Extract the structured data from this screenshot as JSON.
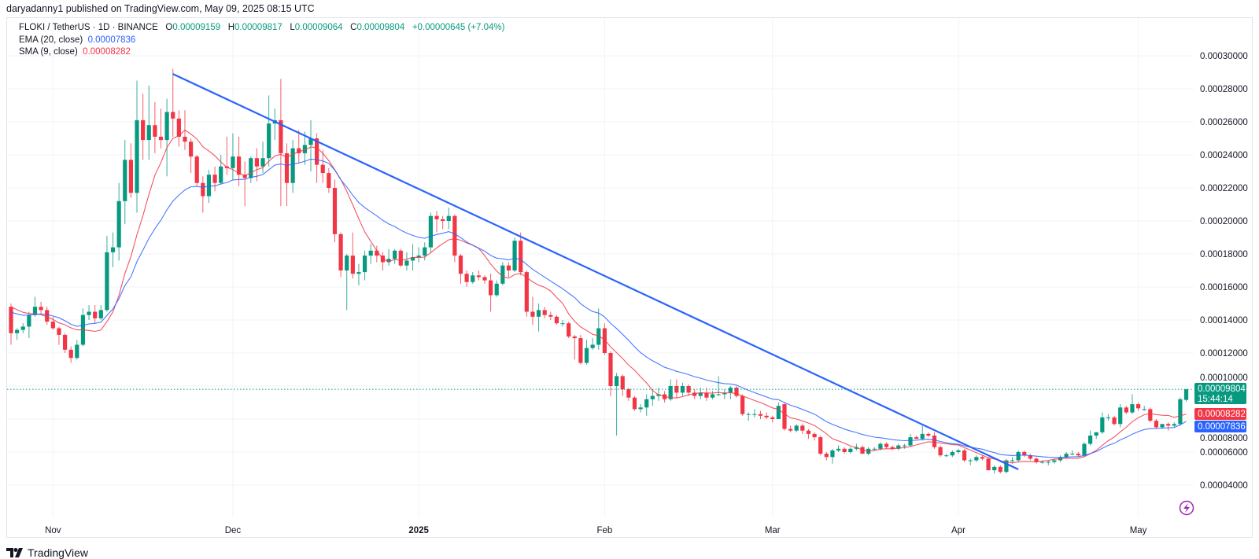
{
  "header": {
    "published": "daryadanny1 published on TradingView.com, May 09, 2025 08:15 UTC"
  },
  "legend": {
    "symbol": "FLOKI / TetherUS · 1D · BINANCE",
    "o_label": "O",
    "o_value": "0.00009159",
    "h_label": "H",
    "h_value": "0.00009817",
    "l_label": "L",
    "l_value": "0.00009064",
    "c_label": "C",
    "c_value": "0.00009804",
    "change": "+0.00000645 (+7.04%)",
    "ema_label": "EMA (20, close)",
    "ema_value": "0.00007836",
    "sma_label": "SMA (9, close)",
    "sma_value": "0.00008282"
  },
  "tags": {
    "last_price": "0.00009804",
    "countdown": "15:44:14",
    "sma": "0.00008282",
    "ema": "0.00007836"
  },
  "colors": {
    "up": "#089981",
    "down": "#F23645",
    "ema": "#2962FF",
    "sma": "#F23645",
    "trendline": "#2962FF",
    "grid": "#f0f3fa",
    "alert": "#9C27B0"
  },
  "brand": "TradingView",
  "chart_data": {
    "type": "candlestick",
    "title": "FLOKI / TetherUS · 1D · BINANCE",
    "price_unit": "1e-6 USDT",
    "ylim": [
      30,
      300
    ],
    "y_ticks": [
      300,
      280,
      260,
      240,
      220,
      200,
      180,
      160,
      140,
      120,
      100,
      80,
      60,
      40
    ],
    "y_tick_labels": [
      "0.00030000",
      "0.00028000",
      "0.00026000",
      "0.00024000",
      "0.00022000",
      "0.00020000",
      "0.00018000",
      "0.00016000",
      "0.00014000",
      "0.00012000",
      "0.00010000",
      "0.00008000",
      "0.00006000",
      "0.00004000"
    ],
    "x_first_day": "Oct 25, 2024",
    "x_ticks": [
      {
        "day": 7,
        "label": "Nov"
      },
      {
        "day": 37,
        "label": "Dec"
      },
      {
        "day": 68,
        "label": "2025",
        "bold": true
      },
      {
        "day": 99,
        "label": "Feb"
      },
      {
        "day": 127,
        "label": "Mar"
      },
      {
        "day": 158,
        "label": "Apr"
      },
      {
        "day": 188,
        "label": "May"
      }
    ],
    "indicators": {
      "ema_period": 20,
      "ema_initial": 146,
      "sma_period": 9,
      "sma_initial": 150
    },
    "trendline": [
      {
        "day": 27,
        "price": 289
      },
      {
        "day": 168,
        "price": 49.5
      }
    ],
    "grid": true,
    "ohlc": [
      [
        148,
        150,
        125,
        132
      ],
      [
        132,
        135,
        128,
        134
      ],
      [
        134,
        138,
        132,
        136
      ],
      [
        136,
        145,
        129,
        143
      ],
      [
        143,
        154,
        142,
        148
      ],
      [
        148,
        151,
        144,
        146
      ],
      [
        146,
        148,
        137,
        139
      ],
      [
        139,
        142,
        134,
        135
      ],
      [
        135,
        136,
        125,
        131
      ],
      [
        131,
        132,
        120,
        122
      ],
      [
        122,
        124,
        114,
        117
      ],
      [
        117,
        128,
        116,
        125
      ],
      [
        125,
        147,
        124,
        143
      ],
      [
        143,
        149,
        140,
        145
      ],
      [
        145,
        149,
        138,
        141
      ],
      [
        141,
        149,
        140,
        146
      ],
      [
        146,
        191,
        145,
        181
      ],
      [
        181,
        193,
        172,
        184
      ],
      [
        184,
        223,
        176,
        212
      ],
      [
        212,
        249,
        198,
        237
      ],
      [
        237,
        247,
        214,
        217
      ],
      [
        217,
        285,
        205,
        261
      ],
      [
        261,
        277,
        237,
        249
      ],
      [
        249,
        282,
        237,
        258
      ],
      [
        258,
        272,
        241,
        251
      ],
      [
        251,
        268,
        244,
        249
      ],
      [
        249,
        274,
        227,
        266
      ],
      [
        266,
        292,
        251,
        262
      ],
      [
        262,
        267,
        245,
        251
      ],
      [
        251,
        267,
        243,
        248
      ],
      [
        248,
        250,
        229,
        239
      ],
      [
        239,
        240,
        221,
        223
      ],
      [
        223,
        227,
        205,
        215
      ],
      [
        215,
        231,
        211,
        228
      ],
      [
        228,
        233,
        218,
        223
      ],
      [
        223,
        240,
        222,
        233
      ],
      [
        233,
        251,
        228,
        232
      ],
      [
        232,
        253,
        225,
        239
      ],
      [
        239,
        251,
        221,
        228
      ],
      [
        228,
        236,
        209,
        226
      ],
      [
        226,
        239,
        223,
        238
      ],
      [
        238,
        244,
        224,
        233
      ],
      [
        233,
        248,
        229,
        238
      ],
      [
        238,
        276,
        233,
        259
      ],
      [
        259,
        268,
        249,
        261
      ],
      [
        261,
        286,
        209,
        241
      ],
      [
        241,
        247,
        209,
        223
      ],
      [
        223,
        249,
        217,
        244
      ],
      [
        244,
        255,
        235,
        241
      ],
      [
        241,
        254,
        234,
        246
      ],
      [
        246,
        261,
        230,
        250
      ],
      [
        250,
        253,
        223,
        234
      ],
      [
        234,
        243,
        223,
        229
      ],
      [
        229,
        232,
        217,
        220
      ],
      [
        220,
        225,
        187,
        192
      ],
      [
        192,
        193,
        166,
        170
      ],
      [
        170,
        180,
        146,
        179
      ],
      [
        179,
        193,
        165,
        168
      ],
      [
        168,
        174,
        161,
        169
      ],
      [
        169,
        182,
        164,
        179
      ],
      [
        179,
        186,
        174,
        182
      ],
      [
        182,
        185,
        175,
        179
      ],
      [
        179,
        181,
        170,
        175
      ],
      [
        175,
        183,
        173,
        177
      ],
      [
        177,
        183,
        174,
        182
      ],
      [
        182,
        183,
        172,
        173
      ],
      [
        173,
        181,
        170,
        176
      ],
      [
        176,
        186,
        170,
        178
      ],
      [
        178,
        184,
        175,
        179
      ],
      [
        179,
        187,
        176,
        184
      ],
      [
        184,
        205,
        181,
        203
      ],
      [
        203,
        206,
        193,
        201
      ],
      [
        201,
        203,
        195,
        200
      ],
      [
        200,
        208,
        195,
        203
      ],
      [
        203,
        204,
        175,
        179
      ],
      [
        179,
        180,
        162,
        168
      ],
      [
        168,
        170,
        160,
        163
      ],
      [
        163,
        169,
        162,
        167
      ],
      [
        167,
        170,
        164,
        166
      ],
      [
        166,
        167,
        162,
        164
      ],
      [
        164,
        168,
        145,
        155
      ],
      [
        155,
        164,
        154,
        162
      ],
      [
        162,
        175,
        161,
        173
      ],
      [
        173,
        175,
        166,
        170
      ],
      [
        170,
        190,
        169,
        188
      ],
      [
        188,
        193,
        167,
        169
      ],
      [
        169,
        170,
        142,
        145
      ],
      [
        145,
        154,
        137,
        142
      ],
      [
        142,
        150,
        133,
        146
      ],
      [
        146,
        148,
        141,
        143
      ],
      [
        143,
        145,
        140,
        142
      ],
      [
        142,
        143,
        137,
        138
      ],
      [
        138,
        140,
        136,
        138
      ],
      [
        138,
        139,
        129,
        130
      ],
      [
        130,
        131,
        116,
        129
      ],
      [
        129,
        131,
        113,
        114
      ],
      [
        114,
        128,
        113,
        123
      ],
      [
        123,
        129,
        122,
        125
      ],
      [
        125,
        147,
        122,
        135
      ],
      [
        135,
        138,
        119,
        120
      ],
      [
        120,
        121,
        94,
        100
      ],
      [
        100,
        108,
        70,
        106
      ],
      [
        106,
        107,
        94,
        98
      ],
      [
        98,
        99,
        91,
        93
      ],
      [
        93,
        94,
        85,
        86
      ],
      [
        86,
        89,
        84,
        87
      ],
      [
        87,
        95,
        82,
        92
      ],
      [
        92,
        98,
        88,
        94
      ],
      [
        94,
        99,
        91,
        95
      ],
      [
        95,
        97,
        90,
        92
      ],
      [
        92,
        104,
        91,
        100
      ],
      [
        100,
        104,
        93,
        96
      ],
      [
        96,
        102,
        94,
        100
      ],
      [
        100,
        101,
        94,
        96
      ],
      [
        96,
        98,
        92,
        94
      ],
      [
        94,
        99,
        92,
        96
      ],
      [
        96,
        99,
        91,
        93
      ],
      [
        93,
        97,
        92,
        95
      ],
      [
        95,
        106,
        94,
        95
      ],
      [
        95,
        98,
        92,
        96
      ],
      [
        96,
        100,
        92,
        99
      ],
      [
        99,
        100,
        93,
        94
      ],
      [
        94,
        95,
        82,
        83
      ],
      [
        83,
        84,
        79,
        83
      ],
      [
        83,
        86,
        81,
        83
      ],
      [
        83,
        85,
        80,
        82
      ],
      [
        82,
        84,
        80,
        81
      ],
      [
        81,
        82,
        78,
        80
      ],
      [
        80,
        90,
        80,
        88
      ],
      [
        89,
        90,
        73,
        74
      ],
      [
        74,
        76,
        72,
        73
      ],
      [
        73,
        77,
        72,
        76
      ],
      [
        76,
        77,
        71,
        73
      ],
      [
        73,
        74,
        68,
        71
      ],
      [
        71,
        72,
        67,
        69
      ],
      [
        69,
        70,
        58,
        59
      ],
      [
        59,
        60,
        55,
        57
      ],
      [
        57,
        62,
        53,
        61
      ],
      [
        61,
        64,
        60,
        62
      ],
      [
        62,
        63,
        59,
        60
      ],
      [
        60,
        63,
        59,
        62
      ],
      [
        62,
        65,
        61,
        63
      ],
      [
        63,
        64,
        59,
        59
      ],
      [
        59,
        63,
        58,
        62
      ],
      [
        62,
        63,
        61,
        62
      ],
      [
        62,
        66,
        61,
        65
      ],
      [
        65,
        66,
        62,
        63
      ],
      [
        63,
        64,
        61,
        62
      ],
      [
        62,
        65,
        61,
        64
      ],
      [
        64,
        65,
        62,
        64
      ],
      [
        64,
        71,
        63,
        69
      ],
      [
        69,
        70,
        68,
        68
      ],
      [
        68,
        76,
        67,
        71
      ],
      [
        71,
        72,
        69,
        70
      ],
      [
        70,
        72,
        62,
        63
      ],
      [
        63,
        64,
        57,
        58
      ],
      [
        58,
        59,
        57,
        58
      ],
      [
        58,
        61,
        57,
        60
      ],
      [
        60,
        62,
        59,
        61
      ],
      [
        61,
        62,
        54,
        55
      ],
      [
        55,
        56,
        52,
        55
      ],
      [
        55,
        58,
        54,
        57
      ],
      [
        57,
        58,
        55,
        56
      ],
      [
        56,
        57,
        49,
        49
      ],
      [
        49,
        52,
        47,
        51
      ],
      [
        51,
        52,
        47,
        48
      ],
      [
        48,
        56,
        47,
        55
      ],
      [
        55,
        57,
        53,
        55
      ],
      [
        55,
        61,
        54,
        60
      ],
      [
        60,
        61,
        57,
        58
      ],
      [
        58,
        59,
        55,
        56
      ],
      [
        56,
        57,
        53,
        54
      ],
      [
        54,
        55,
        53,
        54
      ],
      [
        54,
        55,
        52,
        54
      ],
      [
        54,
        56,
        53,
        55
      ],
      [
        55,
        58,
        54,
        57
      ],
      [
        57,
        60,
        56,
        59
      ],
      [
        59,
        61,
        58,
        59
      ],
      [
        59,
        60,
        57,
        58
      ],
      [
        58,
        66,
        57,
        65
      ],
      [
        65,
        73,
        64,
        70
      ],
      [
        70,
        72,
        68,
        72
      ],
      [
        72,
        84,
        71,
        81
      ],
      [
        81,
        83,
        79,
        81
      ],
      [
        81,
        82,
        76,
        77
      ],
      [
        77,
        89,
        75,
        87
      ],
      [
        87,
        88,
        83,
        84
      ],
      [
        84,
        95,
        83,
        89
      ],
      [
        89,
        90,
        85,
        86.5
      ],
      [
        86,
        88,
        85,
        86
      ],
      [
        86,
        87,
        78,
        79
      ],
      [
        79,
        80,
        74,
        75
      ],
      [
        75,
        77,
        74,
        77
      ],
      [
        77,
        78,
        73,
        76
      ],
      [
        76,
        78,
        75,
        77
      ],
      [
        77,
        93,
        76,
        92
      ],
      [
        91.59,
        98.17,
        90.64,
        98.04
      ]
    ]
  }
}
